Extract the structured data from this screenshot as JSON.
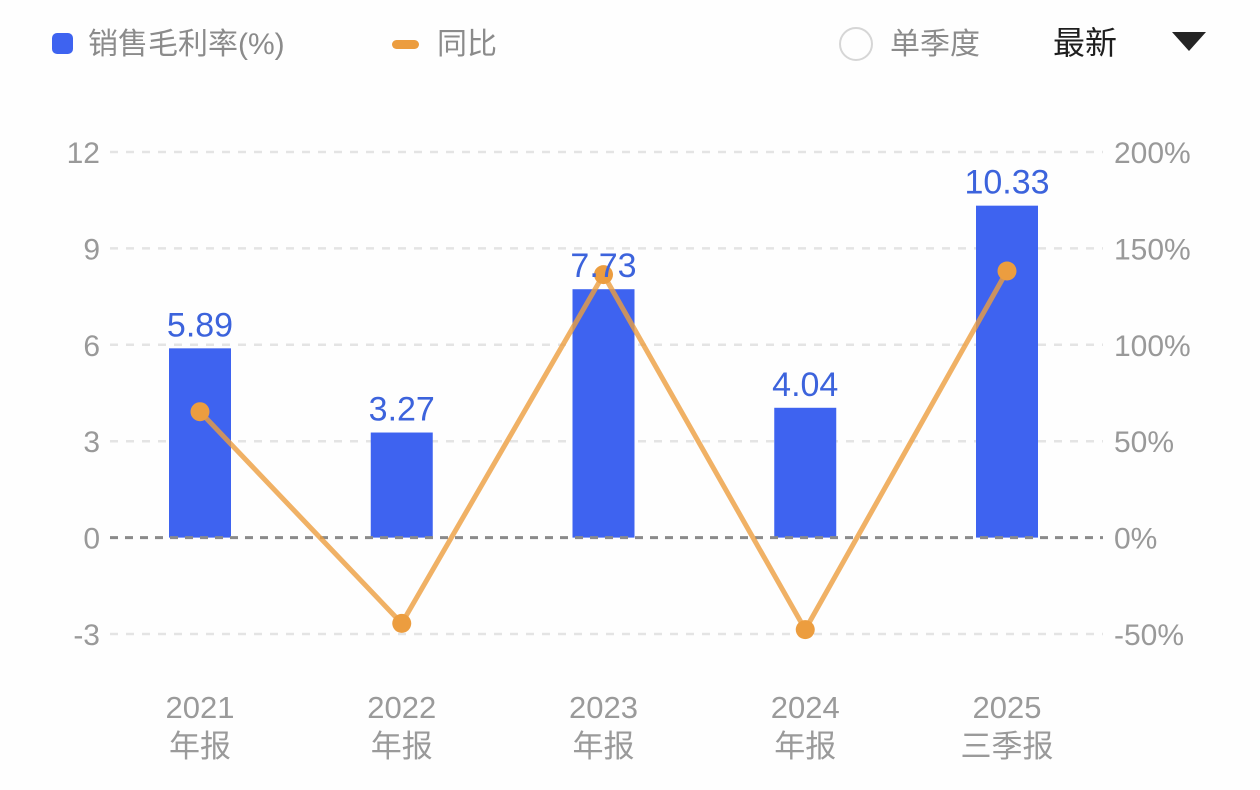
{
  "header": {
    "legend": [
      {
        "label": "销售毛利率(%)",
        "color": "#3E63F0",
        "swatch": "square"
      },
      {
        "label": "同比",
        "color": "#EC9D3F",
        "swatch": "dash"
      }
    ],
    "controls": {
      "radio_label": "单季度",
      "radio_checked": false,
      "dropdown_label": "最新"
    }
  },
  "chart_data": {
    "type": "combo",
    "title": "",
    "legend_position": "top",
    "grid_dashed": true,
    "categories": [
      [
        "2021",
        "年报"
      ],
      [
        "2022",
        "年报"
      ],
      [
        "2023",
        "年报"
      ],
      [
        "2024",
        "年报"
      ],
      [
        "2025",
        "三季报"
      ]
    ],
    "series": [
      {
        "name": "销售毛利率(%)",
        "type": "bar",
        "axis": "left",
        "color": "#3E63F0",
        "values": [
          5.89,
          3.27,
          7.73,
          4.04,
          10.33
        ],
        "labels": [
          "5.89",
          "3.27",
          "7.73",
          "4.04",
          "10.33"
        ],
        "label_color": "#3C63DC"
      },
      {
        "name": "同比",
        "type": "line",
        "axis": "right",
        "color": "#EC9D3F",
        "unit": "%",
        "values": [
          65.3,
          -44.5,
          136.4,
          -47.7,
          138.3
        ]
      }
    ],
    "left_axis": {
      "min": -3,
      "max": 12,
      "ticks": [
        12,
        9,
        6,
        3,
        0,
        -3
      ],
      "suffix": ""
    },
    "right_axis": {
      "min": -50,
      "max": 200,
      "ticks": [
        200,
        150,
        100,
        50,
        0,
        -50
      ],
      "suffix": "%"
    },
    "axis_text_color": "#999999",
    "category_text_color": "#9a9a9a",
    "grid_line_color": "#e4e4e4",
    "zero_line_color": "#8a8a8a"
  }
}
